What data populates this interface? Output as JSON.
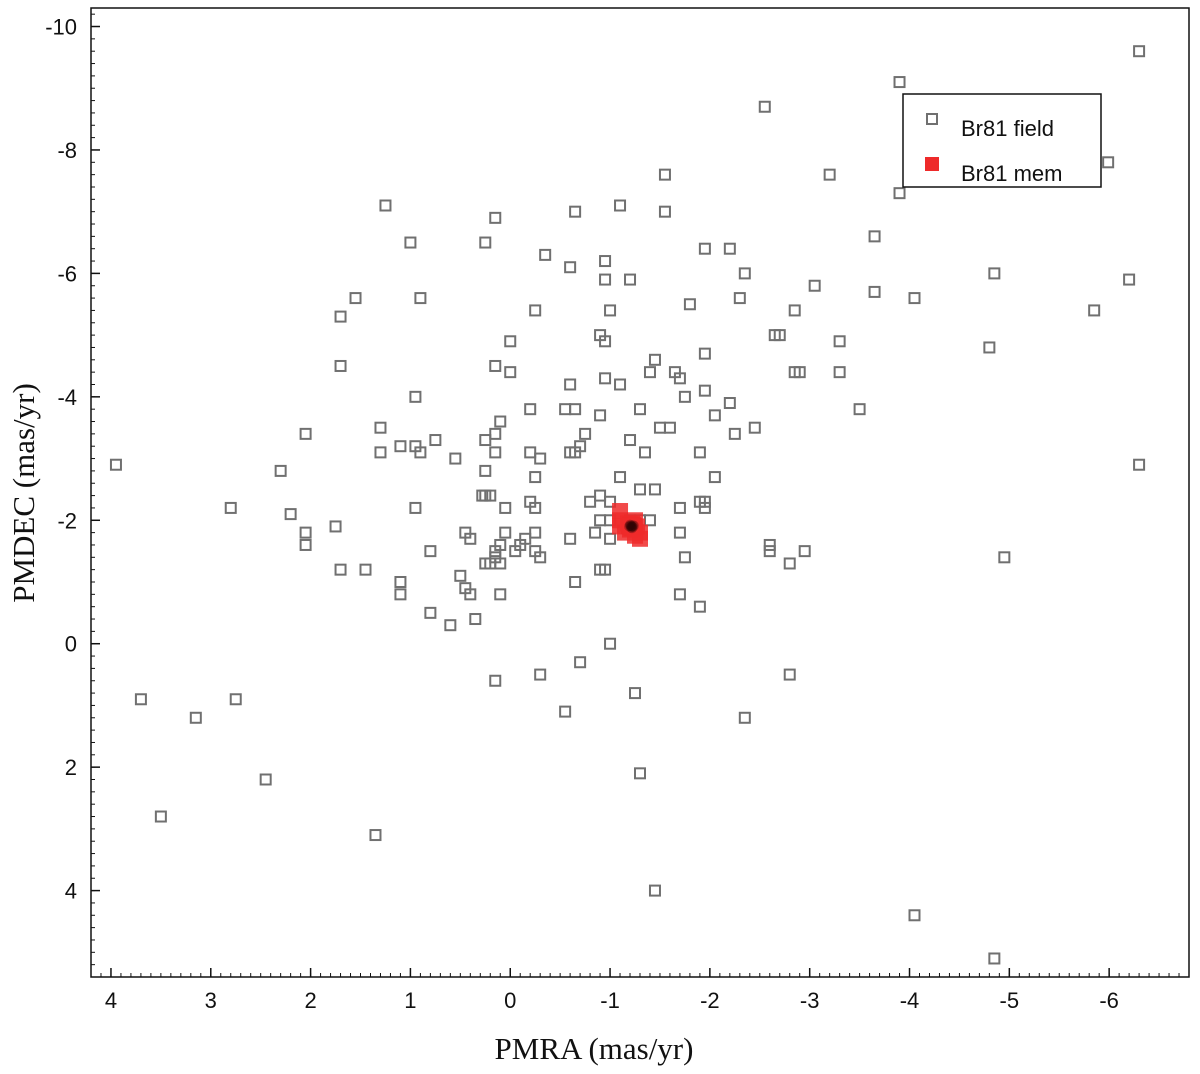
{
  "chart_data": {
    "type": "scatter",
    "xlabel": "PMRA (mas/yr)",
    "ylabel": "PMDEC (mas/yr)",
    "xlim": [
      4.2,
      -6.8
    ],
    "ylim": [
      5.4,
      -10.3
    ],
    "x_ticks": [
      4,
      3,
      2,
      1,
      0,
      -1,
      -2,
      -3,
      -4,
      -5,
      -6
    ],
    "y_ticks": [
      -10,
      -8,
      -6,
      -4,
      -2,
      0,
      2,
      4
    ],
    "x_tick_labels": [
      "4",
      "3",
      "2",
      "1",
      "0",
      "-1",
      "-2",
      "-3",
      "-4",
      "-5",
      "-6"
    ],
    "y_tick_labels": [
      "-10",
      "-8",
      "-6",
      "-4",
      "-2",
      "0",
      "2",
      "4"
    ],
    "grid": false,
    "legend_position": "top-right",
    "series": [
      {
        "name": "Br81 field",
        "marker": "open-square",
        "color": "#707070",
        "points": [
          [
            -6.3,
            -9.6
          ],
          [
            -3.9,
            -9.1
          ],
          [
            -2.55,
            -8.7
          ],
          [
            -5.99,
            -7.8
          ],
          [
            -1.55,
            -7.6
          ],
          [
            -3.2,
            -7.6
          ],
          [
            -3.9,
            -7.3
          ],
          [
            1.25,
            -7.1
          ],
          [
            -1.1,
            -7.1
          ],
          [
            -0.65,
            -7.0
          ],
          [
            -1.55,
            -7.0
          ],
          [
            0.15,
            -6.9
          ],
          [
            -3.65,
            -6.6
          ],
          [
            1,
            -6.5
          ],
          [
            0.25,
            -6.5
          ],
          [
            -1.95,
            -6.4
          ],
          [
            -2.2,
            -6.4
          ],
          [
            -0.35,
            -6.3
          ],
          [
            -0.95,
            -6.2
          ],
          [
            -0.6,
            -6.1
          ],
          [
            -2.35,
            -6.0
          ],
          [
            -4.85,
            -6.0
          ],
          [
            -6.2,
            -5.9
          ],
          [
            -0.95,
            -5.9
          ],
          [
            -1.2,
            -5.9
          ],
          [
            -3.05,
            -5.8
          ],
          [
            -3.65,
            -5.7
          ],
          [
            -4.05,
            -5.6
          ],
          [
            1.55,
            -5.6
          ],
          [
            0.9,
            -5.6
          ],
          [
            -2.3,
            -5.6
          ],
          [
            -1.8,
            -5.5
          ],
          [
            -5.85,
            -5.4
          ],
          [
            -0.25,
            -5.4
          ],
          [
            -1,
            -5.4
          ],
          [
            -2.85,
            -5.4
          ],
          [
            1.7,
            -5.3
          ],
          [
            -0.9,
            -5.0
          ],
          [
            -2.65,
            -5.0
          ],
          [
            -2.7,
            -5.0
          ],
          [
            -0.95,
            -4.9
          ],
          [
            0,
            -4.9
          ],
          [
            -3.3,
            -4.9
          ],
          [
            -4.8,
            -4.8
          ],
          [
            -1.45,
            -4.6
          ],
          [
            -1.95,
            -4.7
          ],
          [
            1.7,
            -4.5
          ],
          [
            0.15,
            -4.5
          ],
          [
            -1.65,
            -4.4
          ],
          [
            -2.85,
            -4.4
          ],
          [
            -2.9,
            -4.4
          ],
          [
            -3.3,
            -4.4
          ],
          [
            -1.4,
            -4.4
          ],
          [
            0,
            -4.4
          ],
          [
            -1.7,
            -4.3
          ],
          [
            -0.95,
            -4.3
          ],
          [
            -1.1,
            -4.2
          ],
          [
            -0.6,
            -4.2
          ],
          [
            -1.95,
            -4.1
          ],
          [
            -1.75,
            -4.0
          ],
          [
            0.95,
            -4.0
          ],
          [
            -2.2,
            -3.9
          ],
          [
            -1.3,
            -3.8
          ],
          [
            -0.2,
            -3.8
          ],
          [
            -0.55,
            -3.8
          ],
          [
            -0.65,
            -3.8
          ],
          [
            -0.9,
            -3.7
          ],
          [
            -2.05,
            -3.7
          ],
          [
            -3.5,
            -3.8
          ],
          [
            0.1,
            -3.6
          ],
          [
            -2.45,
            -3.5
          ],
          [
            1.3,
            -3.5
          ],
          [
            -1.5,
            -3.5
          ],
          [
            -1.6,
            -3.5
          ],
          [
            2.05,
            -3.4
          ],
          [
            -2.25,
            -3.4
          ],
          [
            -0.75,
            -3.4
          ],
          [
            0.15,
            -3.4
          ],
          [
            0.75,
            -3.3
          ],
          [
            0.25,
            -3.3
          ],
          [
            -1.2,
            -3.3
          ],
          [
            -0.7,
            -3.2
          ],
          [
            -0.6,
            -3.1
          ],
          [
            0.95,
            -3.2
          ],
          [
            1.1,
            -3.2
          ],
          [
            0.15,
            -3.1
          ],
          [
            -0.2,
            -3.1
          ],
          [
            -0.65,
            -3.1
          ],
          [
            -1.35,
            -3.1
          ],
          [
            -1.9,
            -3.1
          ],
          [
            -0.3,
            -3.0
          ],
          [
            0.55,
            -3.0
          ],
          [
            0.9,
            -3.1
          ],
          [
            1.3,
            -3.1
          ],
          [
            -2.05,
            -2.7
          ],
          [
            0.25,
            -2.8
          ],
          [
            2.3,
            -2.8
          ],
          [
            3.95,
            -2.9
          ],
          [
            -6.3,
            -2.9
          ],
          [
            -0.25,
            -2.7
          ],
          [
            -1.1,
            -2.7
          ],
          [
            -1.45,
            -2.5
          ],
          [
            -1.3,
            -2.5
          ],
          [
            0.25,
            -2.4
          ],
          [
            0.28,
            -2.4
          ],
          [
            0.2,
            -2.4
          ],
          [
            -0.2,
            -2.3
          ],
          [
            -1.9,
            -2.3
          ],
          [
            -1.95,
            -2.3
          ],
          [
            -1.95,
            -2.2
          ],
          [
            2.8,
            -2.2
          ],
          [
            0.95,
            -2.2
          ],
          [
            0.05,
            -2.2
          ],
          [
            -0.25,
            -2.2
          ],
          [
            2.2,
            -2.1
          ],
          [
            -1.7,
            -2.2
          ],
          [
            -0.8,
            -2.3
          ],
          [
            -0.9,
            -2.4
          ],
          [
            -1,
            -2.3
          ],
          [
            -1.3,
            -2.0
          ],
          [
            1.75,
            -1.9
          ],
          [
            -1.4,
            -2.0
          ],
          [
            -0.9,
            -2.0
          ],
          [
            -1.2,
            -2.0
          ],
          [
            -1,
            -2.0
          ],
          [
            2.05,
            -1.8
          ],
          [
            0.45,
            -1.8
          ],
          [
            -0.25,
            -1.8
          ],
          [
            -0.6,
            -1.7
          ],
          [
            0.05,
            -1.8
          ],
          [
            0.4,
            -1.7
          ],
          [
            -1,
            -1.7
          ],
          [
            -0.85,
            -1.8
          ],
          [
            -1.7,
            -1.8
          ],
          [
            -0.1,
            -1.6
          ],
          [
            0.1,
            -1.6
          ],
          [
            -0.15,
            -1.7
          ],
          [
            2.05,
            -1.6
          ],
          [
            -2.6,
            -1.6
          ],
          [
            -2.95,
            -1.5
          ],
          [
            0.8,
            -1.5
          ],
          [
            -2.6,
            -1.5
          ],
          [
            0.15,
            -1.5
          ],
          [
            -0.25,
            -1.5
          ],
          [
            -0.05,
            -1.5
          ],
          [
            -4.95,
            -1.4
          ],
          [
            0.15,
            -1.4
          ],
          [
            -0.3,
            -1.4
          ],
          [
            -1.75,
            -1.4
          ],
          [
            0.2,
            -1.3
          ],
          [
            -2.8,
            -1.3
          ],
          [
            1.7,
            -1.2
          ],
          [
            1.45,
            -1.2
          ],
          [
            0.1,
            -1.3
          ],
          [
            0.25,
            -1.3
          ],
          [
            -0.9,
            -1.2
          ],
          [
            -0.95,
            -1.2
          ],
          [
            0.5,
            -1.1
          ],
          [
            -0.65,
            -1.0
          ],
          [
            1.1,
            -1.0
          ],
          [
            0.45,
            -0.9
          ],
          [
            0.4,
            -0.8
          ],
          [
            1.1,
            -0.8
          ],
          [
            -1.7,
            -0.8
          ],
          [
            0.1,
            -0.8
          ],
          [
            0.8,
            -0.5
          ],
          [
            -1.9,
            -0.6
          ],
          [
            0.35,
            -0.4
          ],
          [
            0.6,
            -0.3
          ],
          [
            -1,
            0.0
          ],
          [
            -0.7,
            0.3
          ],
          [
            2.75,
            0.9
          ],
          [
            -0.3,
            0.5
          ],
          [
            -2.8,
            0.5
          ],
          [
            3.7,
            0.9
          ],
          [
            0.15,
            0.6
          ],
          [
            -1.25,
            0.8
          ],
          [
            -0.55,
            1.1
          ],
          [
            3.15,
            1.2
          ],
          [
            -2.35,
            1.2
          ],
          [
            -1.3,
            2.1
          ],
          [
            2.45,
            2.2
          ],
          [
            3.5,
            2.8
          ],
          [
            1.35,
            3.1
          ],
          [
            -1.45,
            4.0
          ],
          [
            -4.05,
            4.4
          ],
          [
            -4.85,
            5.1
          ]
        ]
      },
      {
        "name": "Br81 mem",
        "marker": "filled-square",
        "color": "#ee2a2a",
        "points": [
          [
            -1.1,
            -2.15
          ],
          [
            -1.1,
            -2.0
          ],
          [
            -1.1,
            -1.9
          ],
          [
            -1.15,
            -1.8
          ],
          [
            -1.2,
            -1.85
          ],
          [
            -1.22,
            -1.95
          ],
          [
            -1.25,
            -2.0
          ],
          [
            -1.27,
            -1.9
          ],
          [
            -1.3,
            -1.8
          ],
          [
            -1.3,
            -1.7
          ],
          [
            -1.25,
            -1.75
          ],
          [
            -1.18,
            -1.95
          ],
          [
            -1.2,
            -1.9
          ],
          [
            -1.22,
            -1.9
          ],
          [
            -1.23,
            -1.92
          ],
          [
            -1.21,
            -1.88
          ],
          [
            -1.24,
            -1.91
          ],
          [
            -1.2,
            -1.93
          ],
          [
            -1.22,
            -1.87
          ],
          [
            -1.19,
            -1.9
          ],
          [
            -1.21,
            -1.92
          ],
          [
            -1.23,
            -1.89
          ],
          [
            -1.2,
            -1.91
          ],
          [
            -1.22,
            -1.9
          ],
          [
            -1.21,
            -1.9
          ]
        ]
      }
    ]
  }
}
